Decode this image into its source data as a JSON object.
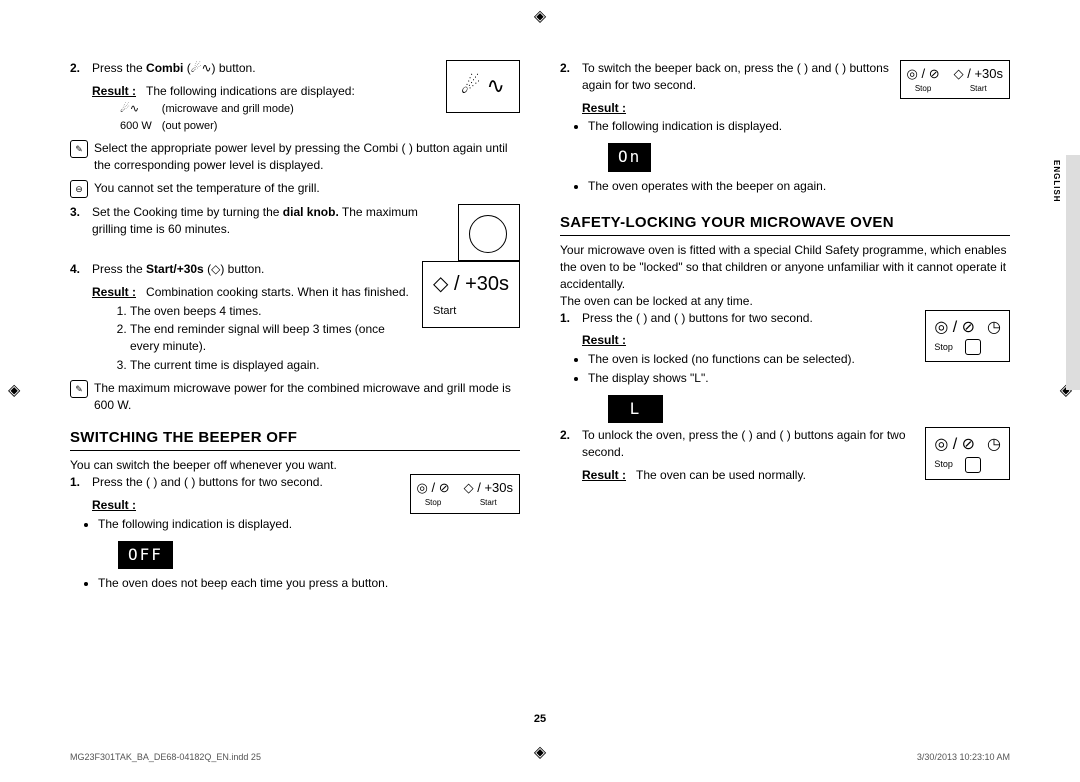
{
  "left": {
    "step2": {
      "num": "2.",
      "text_a": "Press the ",
      "bold": "Combi",
      "text_b": " (",
      "text_c": ") button."
    },
    "result_label": "Result :",
    "result_text": "The following indications are displayed:",
    "mode_table": {
      "r1a": "",
      "r1b": "(microwave and grill mode)",
      "r2a": "600 W",
      "r2b": "(out power)"
    },
    "note1": "Select the appropriate power level by pressing the Combi (   ) button again until the corresponding power level is displayed.",
    "note2": "You cannot set the temperature of the grill.",
    "step3": {
      "num": "3.",
      "text": "Set the Cooking time by turning the dial knob. The maximum grilling time is 60 minutes."
    },
    "step4": {
      "num": "4.",
      "text_a": "Press the ",
      "bold": "Start/+30s",
      "text_b": " (",
      "text_c": ") button."
    },
    "combi_result": "Combination cooking starts. When it has finished.",
    "sub": {
      "a": "The oven beeps 4 times.",
      "b": "The end reminder signal will beep 3 times (once every minute).",
      "c": "The current time is displayed again."
    },
    "note3": "The maximum microwave power for the combined microwave and grill mode is 600 W.",
    "beeper_title": "SWITCHING THE BEEPER OFF",
    "beeper_intro": "You can switch the beeper off whenever you want.",
    "beeper_step1": {
      "num": "1.",
      "text": "Press the (   ) and (   ) buttons for two second."
    },
    "beeper_res1": "The following indication is displayed.",
    "disp_off": "OFF",
    "beeper_res2": "The oven does not beep each time you press a button.",
    "icon_start": "◇ / +30s",
    "icon_start_label": "Start",
    "icon_stop": "◎ / ⊘",
    "stop_label": "Stop",
    "start_label": "Start",
    "plus30": "◇ / +30s"
  },
  "right": {
    "step2": {
      "num": "2.",
      "text": "To switch the beeper back on, press the (   ) and (   ) buttons again for two second."
    },
    "res_a": "The following indication is displayed.",
    "disp_on": "On",
    "res_b": "The oven operates with the beeper on again.",
    "safety_title": "SAFETY-LOCKING YOUR MICROWAVE OVEN",
    "safety_intro": "Your microwave oven is fitted with a special Child Safety programme, which enables the oven to be \"locked\" so that children or anyone unfamiliar with it cannot operate it accidentally.",
    "safety_intro2": "The oven can be locked at any time.",
    "lock1": {
      "num": "1.",
      "text": "Press the (   ) and (   ) buttons for two second."
    },
    "lock_res_a": "The oven is locked (no functions can be selected).",
    "lock_res_b": "The display shows \"L\".",
    "disp_l": "L",
    "lock2": {
      "num": "2.",
      "text": "To unlock the oven, press the (   ) and (   ) buttons again for two second."
    },
    "lock2_res": "The oven can be used normally.",
    "stop": "Stop"
  },
  "lang": "ENGLISH",
  "pagenum": "25",
  "footer": {
    "left": "MG23F301TAK_BA_DE68-04182Q_EN.indd   25",
    "right": "3/30/2013   10:23:10 AM"
  },
  "result": "Result :"
}
